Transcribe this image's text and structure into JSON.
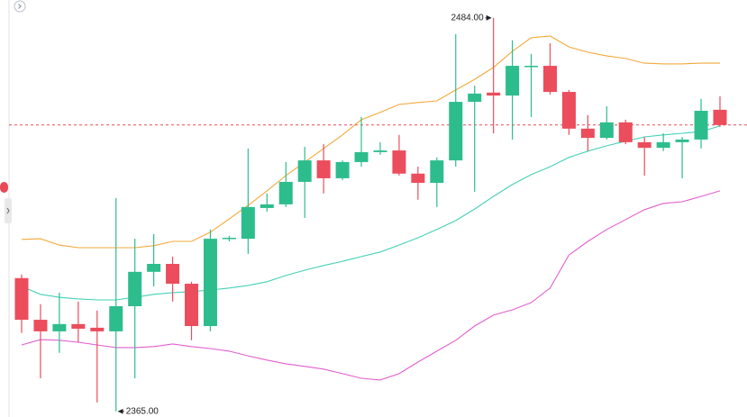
{
  "chart_data": {
    "type": "candlestick",
    "open": [
      2405.3,
      2392.7,
      2389.2,
      2391.4,
      2390.3,
      2389.2,
      2396.8,
      2407.2,
      2409.6,
      2403.6,
      2390.8,
      2417.2,
      2417.2,
      2426.5,
      2427.6,
      2434.4,
      2440.9,
      2435.5,
      2440.4,
      2443.4,
      2443.9,
      2436.9,
      2434.1,
      2440.9,
      2458.6,
      2461.4,
      2460.5,
      2469.3,
      2469.5,
      2461.6,
      2450.5,
      2447.7,
      2452.4,
      2446.4,
      2444.7,
      2446.4,
      2447.2,
      2456.2
    ],
    "high": [
      2406.4,
      2397.4,
      2400.9,
      2398.2,
      2395.5,
      2429.5,
      2417.2,
      2418.6,
      2411.8,
      2404.2,
      2420.0,
      2418.1,
      2444.5,
      2430.9,
      2440.4,
      2445.0,
      2445.8,
      2440.9,
      2454.0,
      2446.4,
      2448.6,
      2439.0,
      2441.8,
      2479.1,
      2463.5,
      2484.0,
      2477.2,
      2473.1,
      2476.3,
      2462.2,
      2454.6,
      2457.3,
      2453.2,
      2448.0,
      2449.1,
      2448.0,
      2459.5,
      2460.3
    ],
    "low": [
      2388.7,
      2375.0,
      2382.7,
      2385.9,
      2367.7,
      2365.0,
      2375.0,
      2402.8,
      2398.2,
      2386.5,
      2389.2,
      2416.4,
      2412.6,
      2425.4,
      2426.8,
      2423.5,
      2430.9,
      2434.9,
      2439.0,
      2442.6,
      2436.3,
      2429.0,
      2426.8,
      2439.0,
      2431.4,
      2449.1,
      2447.2,
      2454.0,
      2460.8,
      2448.6,
      2443.7,
      2447.2,
      2445.8,
      2436.3,
      2443.7,
      2435.5,
      2444.5,
      2451.0
    ],
    "close": [
      2392.7,
      2389.2,
      2391.4,
      2390.0,
      2389.2,
      2396.8,
      2407.2,
      2409.6,
      2403.6,
      2390.8,
      2417.2,
      2417.5,
      2426.8,
      2427.6,
      2434.4,
      2440.9,
      2435.5,
      2440.4,
      2443.4,
      2443.9,
      2436.9,
      2434.1,
      2440.9,
      2458.6,
      2461.1,
      2460.5,
      2469.5,
      2469.5,
      2461.6,
      2450.5,
      2447.7,
      2452.4,
      2446.4,
      2444.7,
      2446.4,
      2447.2,
      2455.9,
      2451.6
    ],
    "up_color": "#2dbd8c",
    "down_color": "#eb4d5c",
    "series": [
      {
        "color": "#f2a93b",
        "values": [
          2417.0,
          2417.2,
          2415.3,
          2414.5,
          2414.5,
          2414.5,
          2414.5,
          2415.1,
          2416.4,
          2416.4,
          2419.2,
          2423.2,
          2427.3,
          2431.7,
          2436.3,
          2440.4,
          2444.5,
          2448.6,
          2453.2,
          2455.4,
          2457.8,
          2458.4,
          2458.9,
          2462.2,
          2465.4,
          2469.0,
          2473.9,
          2478.0,
          2478.5,
          2475.2,
          2473.6,
          2472.5,
          2471.7,
          2470.3,
          2470.1,
          2470.1,
          2470.3,
          2470.3
        ]
      },
      {
        "color": "#45d1b5",
        "values": [
          2402.8,
          2400.4,
          2399.5,
          2399.0,
          2398.7,
          2398.7,
          2399.5,
          2400.4,
          2400.9,
          2401.2,
          2401.7,
          2402.3,
          2403.1,
          2404.2,
          2406.1,
          2407.7,
          2409.1,
          2410.4,
          2411.8,
          2413.2,
          2415.3,
          2417.5,
          2420.0,
          2422.7,
          2426.2,
          2430.0,
          2433.6,
          2436.6,
          2439.0,
          2441.8,
          2443.7,
          2445.3,
          2446.7,
          2448.0,
          2448.6,
          2449.1,
          2449.6,
          2451.3
        ]
      },
      {
        "color": "#e25fcf",
        "values": [
          2385.1,
          2386.7,
          2386.5,
          2385.9,
          2385.1,
          2384.3,
          2384.3,
          2384.6,
          2385.4,
          2384.6,
          2384.0,
          2383.2,
          2381.8,
          2380.5,
          2379.4,
          2378.6,
          2377.8,
          2376.4,
          2375.0,
          2374.5,
          2376.4,
          2379.9,
          2383.2,
          2386.5,
          2390.8,
          2394.1,
          2395.7,
          2397.9,
          2402.3,
          2412.3,
          2416.4,
          2420.0,
          2423.0,
          2426.0,
          2427.9,
          2428.4,
          2430.0,
          2431.7
        ]
      }
    ],
    "ylim": [
      2363.3,
      2489.4
    ],
    "price_line": true,
    "annotations": [
      {
        "text": "2484.00"
      },
      {
        "text": "2365.00"
      }
    ]
  }
}
